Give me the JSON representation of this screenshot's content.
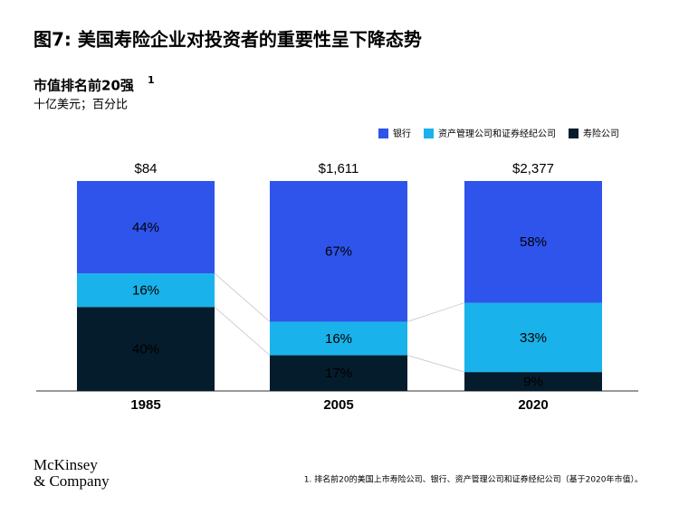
{
  "chart_data": {
    "type": "stacked_bar_100",
    "title": "图7: 美国寿险企业对投资者的重要性呈下降态势",
    "subtitle": "市值排名前20强",
    "subtitle_sup": "1",
    "unit_label": "十亿美元；百分比",
    "categories": [
      "1985",
      "2005",
      "2020"
    ],
    "totals": {
      "values": [
        84,
        1611,
        2377
      ],
      "value_labels": [
        "$84",
        "$1,611",
        "$2,377"
      ]
    },
    "series": [
      {
        "name": "银行",
        "color": "#2f54eb",
        "label_color": "#ffffff",
        "values": [
          44,
          67,
          58
        ],
        "value_labels": [
          "44%",
          "67%",
          "58%"
        ]
      },
      {
        "name": "资产管理公司和证券经纪公司",
        "color": "#1ab2ea",
        "label_color": "#051c2c",
        "values": [
          16,
          16,
          33
        ],
        "value_labels": [
          "16%",
          "16%",
          "33%"
        ]
      },
      {
        "name": "寿险公司",
        "color": "#051c2c",
        "label_color": "#ffffff",
        "values": [
          40,
          17,
          9
        ],
        "value_labels": [
          "40%",
          "17%",
          "9%"
        ]
      }
    ],
    "ylim": [
      0,
      100
    ],
    "legend": "top-right",
    "footnote": "1. 排名前20的美国上市寿险公司、银行、资产管理公司和证券经纪公司（基于2020年市值）。"
  },
  "brand": [
    "McKinsey",
    "& Company"
  ]
}
